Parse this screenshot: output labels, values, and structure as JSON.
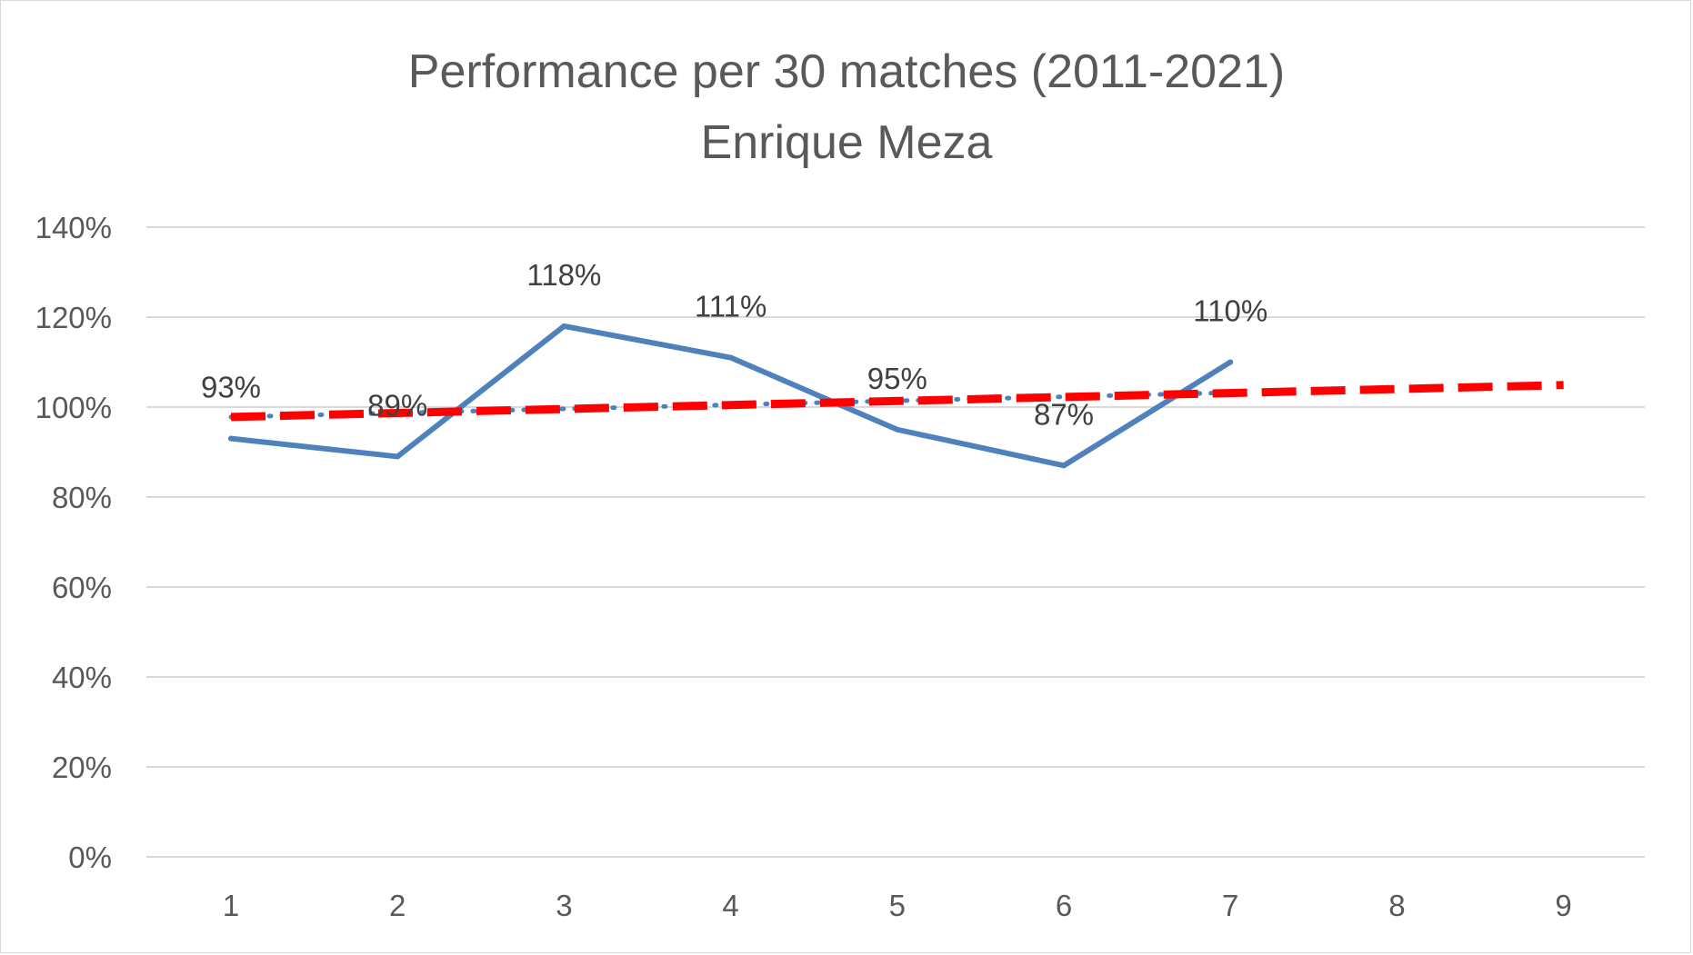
{
  "chart_data": {
    "type": "line",
    "title": "Performance per 30 matches (2011-2021)",
    "subtitle": "Enrique Meza",
    "x_ticks": [
      "1",
      "2",
      "3",
      "4",
      "5",
      "6",
      "7",
      "8",
      "9"
    ],
    "xlim": [
      1,
      9
    ],
    "ylim": [
      0,
      140
    ],
    "y_ticks": [
      {
        "value": 0,
        "label": "0%"
      },
      {
        "value": 20,
        "label": "20%"
      },
      {
        "value": 40,
        "label": "40%"
      },
      {
        "value": 60,
        "label": "60%"
      },
      {
        "value": 80,
        "label": "80%"
      },
      {
        "value": 100,
        "label": "100%"
      },
      {
        "value": 120,
        "label": "120%"
      },
      {
        "value": 140,
        "label": "140%"
      }
    ],
    "grid": true,
    "series": [
      {
        "x": [
          1,
          2,
          3,
          4,
          5,
          6,
          7
        ],
        "values": [
          93,
          89,
          118,
          111,
          95,
          87,
          110
        ],
        "labels": [
          "93%",
          "89%",
          "118%",
          "111%",
          "95%",
          "87%",
          "110%"
        ],
        "color": "#4f81bd"
      }
    ],
    "trendlines": [
      {
        "style": "dotted",
        "color": "#4f81bd",
        "x": [
          1,
          7
        ],
        "values": [
          97.8,
          103.2
        ]
      },
      {
        "style": "dashed",
        "color": "#ff0000",
        "x": [
          1,
          9
        ],
        "values": [
          97.8,
          104.9
        ]
      }
    ]
  }
}
